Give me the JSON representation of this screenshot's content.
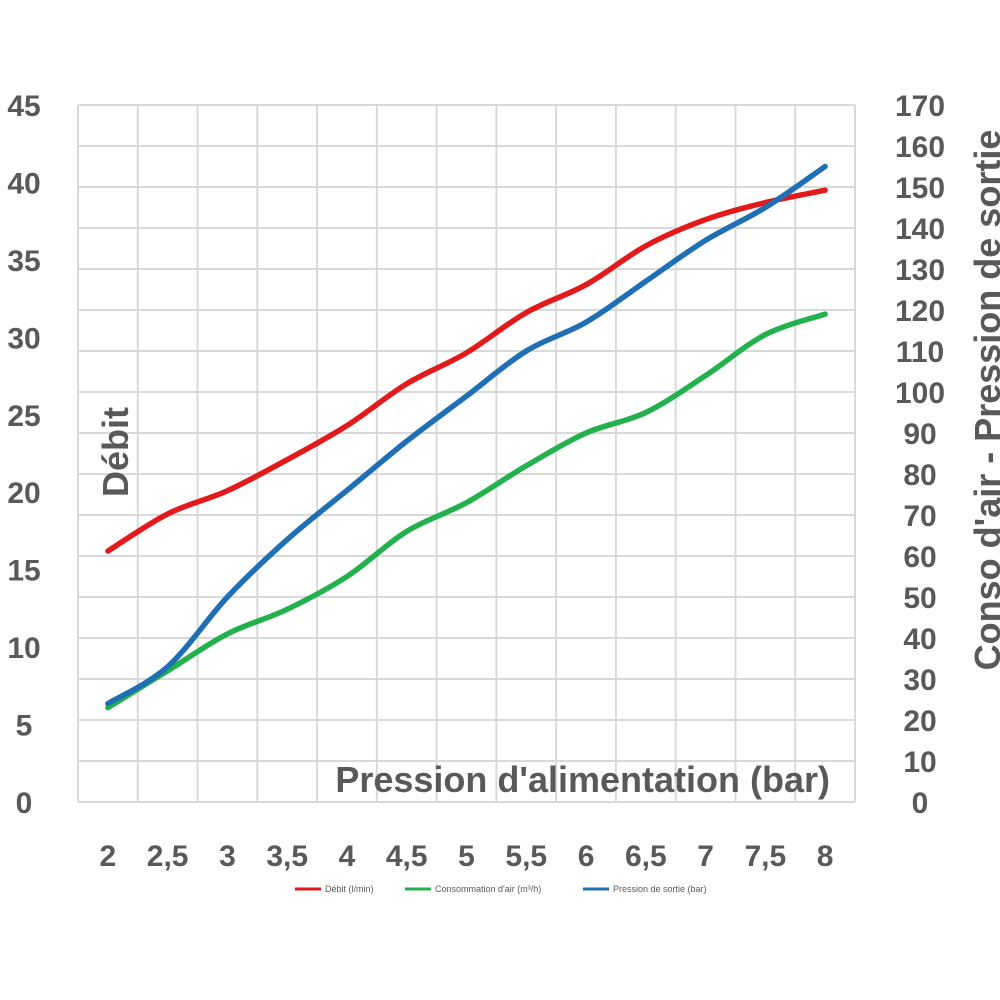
{
  "chart_data": {
    "type": "line",
    "x": [
      2,
      2.5,
      3,
      3.5,
      4,
      4.5,
      5,
      5.5,
      6,
      6.5,
      7,
      7.5,
      8
    ],
    "x_tick_labels": [
      "2",
      "2,5",
      "3",
      "3,5",
      "4",
      "4,5",
      "5",
      "5,5",
      "6",
      "6,5",
      "7",
      "7,5",
      "8"
    ],
    "xlabel": "Pression d'alimentation (bar)",
    "ylabel_left": "Débit",
    "ylabel_right": "Conso d'air - Pression de sortie",
    "ylim_left": [
      0,
      45
    ],
    "ylim_right": [
      0,
      170
    ],
    "y_left_ticks": [
      "0",
      "5",
      "10",
      "15",
      "20",
      "25",
      "30",
      "35",
      "40",
      "45"
    ],
    "y_right_ticks": [
      "0",
      "10",
      "20",
      "30",
      "40",
      "50",
      "60",
      "70",
      "80",
      "90",
      "100",
      "110",
      "120",
      "130",
      "140",
      "150",
      "160",
      "170"
    ],
    "grid": true,
    "legend_position": "bottom",
    "series": [
      {
        "name": "Débit (l/min)",
        "axis": "left",
        "color": "#e31a1c",
        "values": [
          16.2,
          18.6,
          20.1,
          22.1,
          24.3,
          27.0,
          29.0,
          31.6,
          33.4,
          35.9,
          37.6,
          38.7,
          39.5
        ]
      },
      {
        "name": "Consommation d'air (m³/h)",
        "axis": "right",
        "color": "#22b14c",
        "values": [
          23,
          32,
          41,
          47,
          55,
          66,
          73,
          82,
          90,
          95,
          104,
          114,
          119
        ]
      },
      {
        "name": "Pression de sortie (bar)",
        "axis": "right",
        "color": "#1f6fb4",
        "values": [
          24,
          33,
          50,
          64,
          76,
          88,
          99,
          110,
          117,
          127,
          137,
          145,
          155
        ]
      }
    ]
  }
}
